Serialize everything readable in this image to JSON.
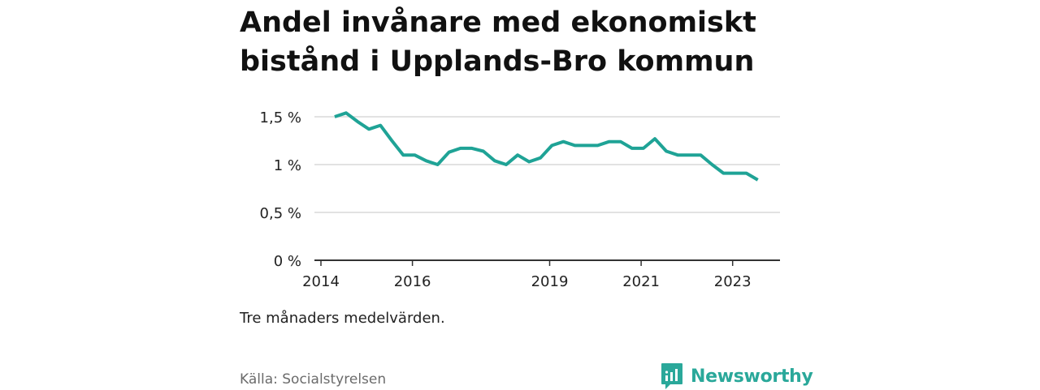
{
  "title": "Andel invånare med ekonomiskt bistånd i Upplands-Bro kommun",
  "note": "Tre månaders medelvärden.",
  "source": "Källa: Socialstyrelsen",
  "brand": {
    "name": "Newsworthy",
    "icon": "newsworthy-logo-icon"
  },
  "colors": {
    "line": "#1fa396",
    "grid": "#d9d9d9",
    "axis": "#333333",
    "brand": "#2aa89a"
  },
  "chart_data": {
    "type": "line",
    "title": "Andel invånare med ekonomiskt bistånd i Upplands-Bro kommun",
    "xlabel": "",
    "ylabel": "",
    "x_ticks": [
      2014,
      2016,
      2019,
      2021,
      2023
    ],
    "y_ticks": [
      {
        "value": 0,
        "label": "0 %"
      },
      {
        "value": 0.5,
        "label": "0,5 %"
      },
      {
        "value": 1,
        "label": "1 %"
      },
      {
        "value": 1.5,
        "label": "1,5 %"
      }
    ],
    "xlim": [
      2014,
      2024
    ],
    "ylim": [
      0,
      1.5
    ],
    "grid": true,
    "series": [
      {
        "x": [
          2014.3,
          2014.55,
          2014.8,
          2015.05,
          2015.3,
          2015.55,
          2015.8,
          2016.05,
          2016.3,
          2016.55,
          2016.8,
          2017.05,
          2017.3,
          2017.55,
          2017.8,
          2018.05,
          2018.3,
          2018.55,
          2018.8,
          2019.05,
          2019.3,
          2019.55,
          2019.8,
          2020.05,
          2020.3,
          2020.55,
          2020.8,
          2021.05,
          2021.3,
          2021.55,
          2021.8,
          2022.05,
          2022.3,
          2022.55,
          2022.8,
          2023.05,
          2023.3,
          2023.55
        ],
        "values": [
          1.5,
          1.54,
          1.45,
          1.37,
          1.41,
          1.25,
          1.1,
          1.1,
          1.04,
          1.0,
          1.13,
          1.17,
          1.17,
          1.14,
          1.04,
          1.0,
          1.1,
          1.03,
          1.07,
          1.2,
          1.24,
          1.2,
          1.2,
          1.2,
          1.24,
          1.24,
          1.17,
          1.17,
          1.27,
          1.14,
          1.1,
          1.1,
          1.1,
          1.0,
          0.91,
          0.91,
          0.91,
          0.84
        ]
      }
    ]
  }
}
